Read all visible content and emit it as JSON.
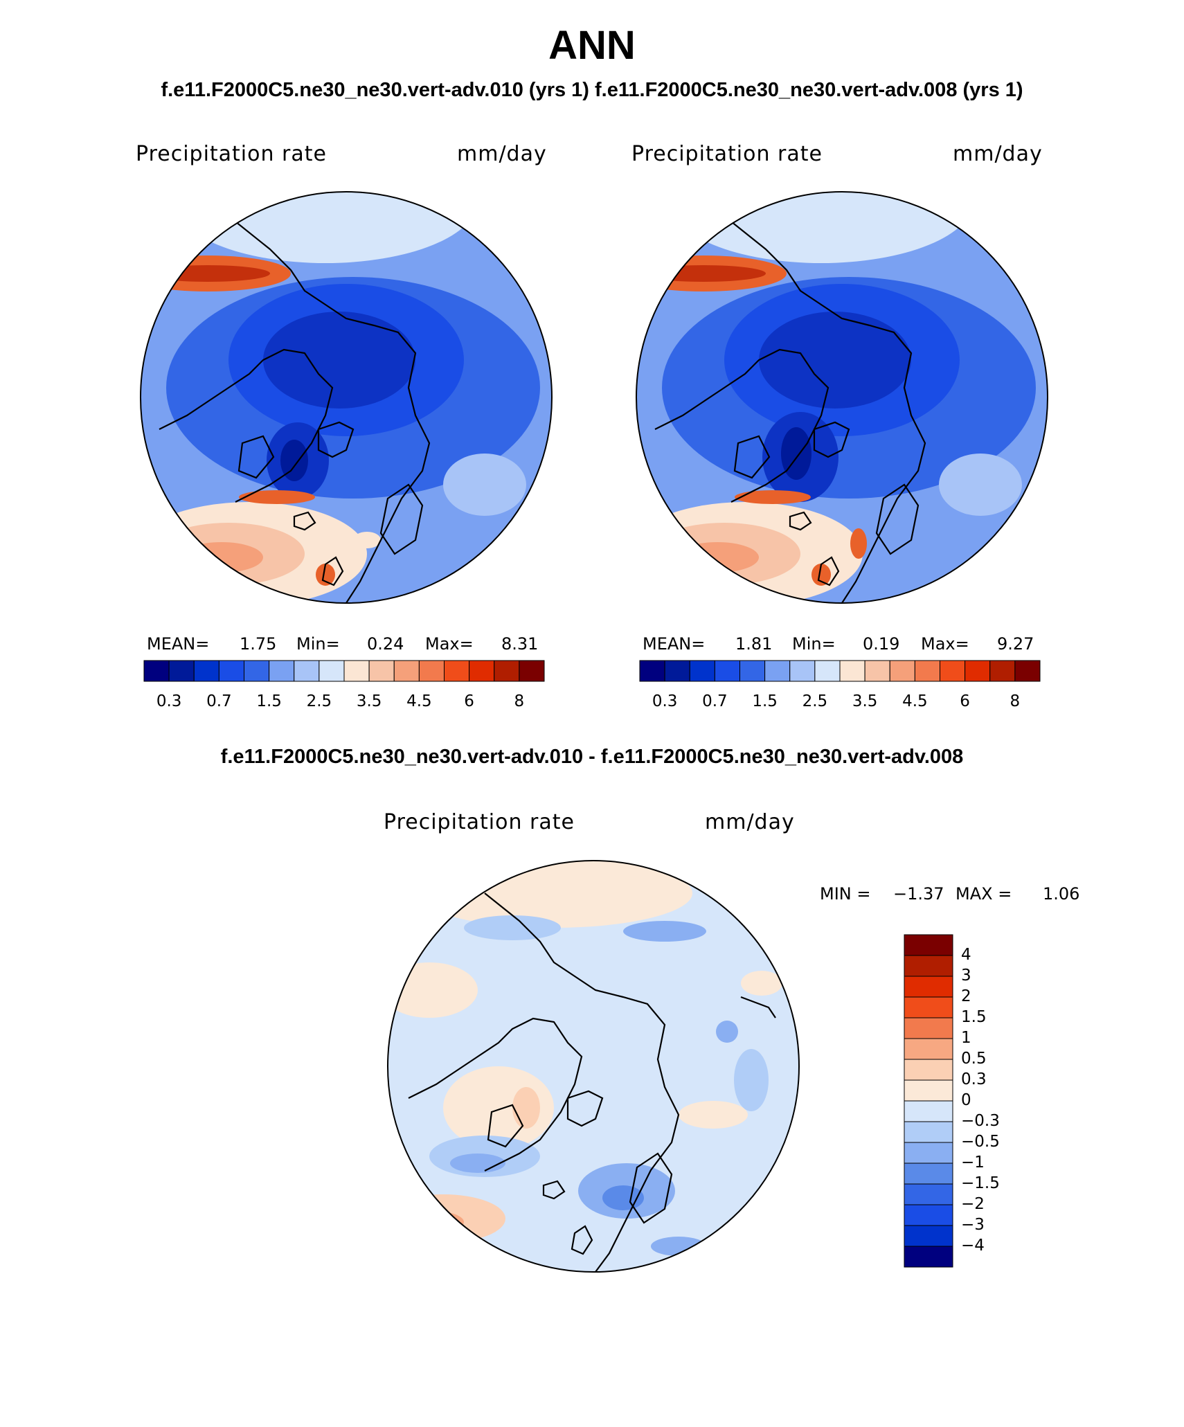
{
  "title": "ANN",
  "case_title": "f.e11.F2000C5.ne30_ne30.vert-adv.010 (yrs 1) f.e11.F2000C5.ne30_ne30.vert-adv.008 (yrs 1)",
  "diff_title": "f.e11.F2000C5.ne30_ne30.vert-adv.010 - f.e11.F2000C5.ne30_ne30.vert-adv.008",
  "panels": [
    {
      "variable": "Precipitation rate",
      "units": "mm/day",
      "mean_label": "MEAN=",
      "mean": "1.75",
      "min_label": "Min=",
      "min": "0.24",
      "max_label": "Max=",
      "max": "8.31"
    },
    {
      "variable": "Precipitation rate",
      "units": "mm/day",
      "mean_label": "MEAN=",
      "mean": "1.81",
      "min_label": "Min=",
      "min": "0.19",
      "max_label": "Max=",
      "max": "9.27"
    }
  ],
  "diff_panel": {
    "variable": "Precipitation rate",
    "units": "mm/day",
    "min_label": "MIN =",
    "min": "−1.37",
    "max_label": "MAX =",
    "max": "1.06"
  },
  "abs_colorbar": {
    "colors": [
      "#00007f",
      "#001a99",
      "#0033cc",
      "#1a4de6",
      "#3366e6",
      "#7aa1f2",
      "#a8c4f7",
      "#d6e6fa",
      "#fbe6d4",
      "#f7c4a8",
      "#f5a07a",
      "#f27a4d",
      "#f04d1a",
      "#e02c00",
      "#b01e00",
      "#7a0000"
    ],
    "tick_labels": [
      "0.3",
      "0.7",
      "1.5",
      "2.5",
      "3.5",
      "4.5",
      "6",
      "8"
    ]
  },
  "diff_colorbar": {
    "colors": [
      "#7a0000",
      "#b01e00",
      "#e02c00",
      "#f04d1a",
      "#f27a4d",
      "#f7a882",
      "#fbd0b4",
      "#fbe9d8",
      "#d6e6fa",
      "#b0cdf7",
      "#8aaff2",
      "#5a8ae8",
      "#3366e6",
      "#1a4de6",
      "#0033cc",
      "#00007f"
    ],
    "tick_labels": [
      "4",
      "3",
      "2",
      "1.5",
      "1",
      "0.5",
      "0.3",
      "0",
      "−0.3",
      "−0.5",
      "−1",
      "−1.5",
      "−2",
      "−3",
      "−4"
    ]
  }
}
